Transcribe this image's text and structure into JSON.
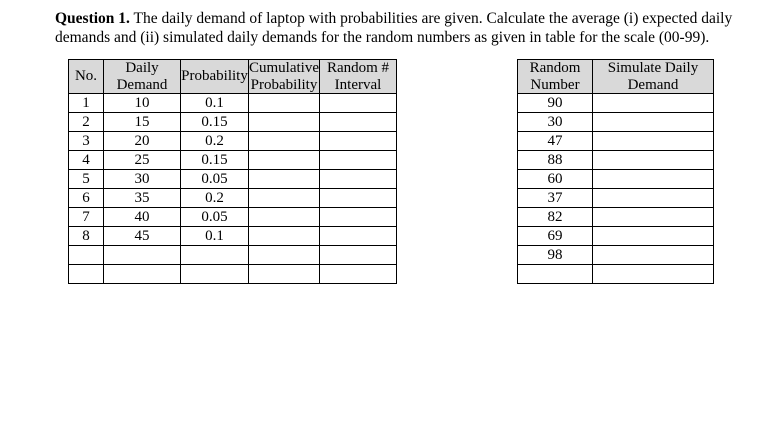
{
  "question": {
    "label": "Question 1.",
    "line1_rest": " The daily demand of laptop with probabilities are given. Calculate the average (i) expected daily",
    "line2": "demands and (ii) simulated daily demands for the random numbers as given in table for the scale (00-99)."
  },
  "demand_table": {
    "headers": [
      "No.",
      "Daily\nDemand",
      "Probability",
      "Cumulative\nProbability",
      "Random #\nInterval"
    ],
    "rows": [
      [
        "1",
        "10",
        "0.1",
        "",
        ""
      ],
      [
        "2",
        "15",
        "0.15",
        "",
        ""
      ],
      [
        "3",
        "20",
        "0.2",
        "",
        ""
      ],
      [
        "4",
        "25",
        "0.15",
        "",
        ""
      ],
      [
        "5",
        "30",
        "0.05",
        "",
        ""
      ],
      [
        "6",
        "35",
        "0.2",
        "",
        ""
      ],
      [
        "7",
        "40",
        "0.05",
        "",
        ""
      ],
      [
        "8",
        "45",
        "0.1",
        "",
        ""
      ],
      [
        "",
        "",
        "",
        "",
        ""
      ],
      [
        "",
        "",
        "",
        "",
        ""
      ]
    ]
  },
  "simulation_table": {
    "headers": [
      "Random\nNumber",
      "Simulate Daily\nDemand"
    ],
    "rows": [
      [
        "90",
        ""
      ],
      [
        "30",
        ""
      ],
      [
        "47",
        ""
      ],
      [
        "88",
        ""
      ],
      [
        "60",
        ""
      ],
      [
        "37",
        ""
      ],
      [
        "82",
        ""
      ],
      [
        "69",
        ""
      ],
      [
        "98",
        ""
      ],
      [
        "",
        ""
      ]
    ]
  },
  "colors": {
    "header_bg": "#d9d9d9",
    "border": "#000000",
    "text": "#000000",
    "page_bg": "#ffffff"
  }
}
